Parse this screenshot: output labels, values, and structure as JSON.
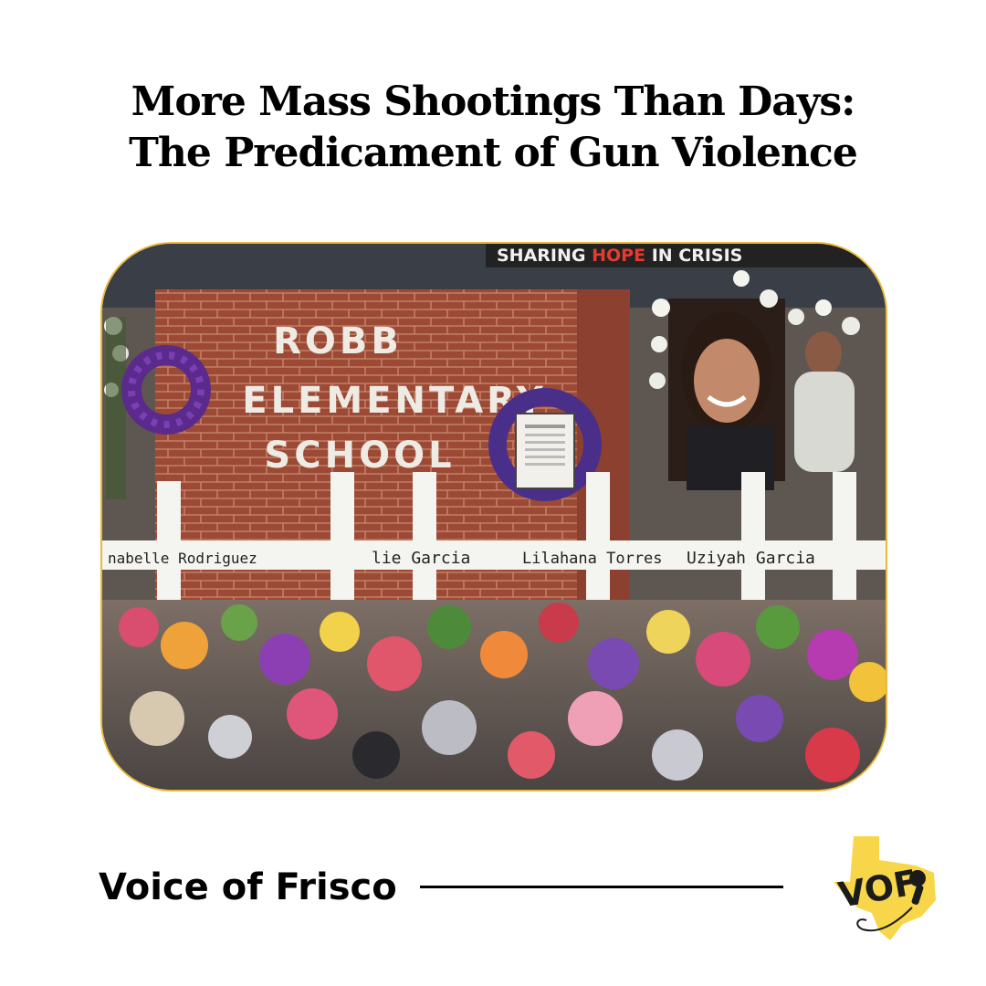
{
  "title": {
    "line1": "More Mass Shootings Than Days:",
    "line2": "The Predicament of Gun Violence"
  },
  "photo": {
    "sign": {
      "line1": "ROBB",
      "line2": "ELEMENTARY",
      "line3": "SCHOOL"
    },
    "banner": {
      "part1": "SHARING ",
      "part2": "HOPE",
      "part3": " IN CRISIS"
    },
    "crosses": [
      "nabelle Rodriguez",
      "lie Garcia",
      "Lilahana Torres",
      "Uziyah Garcia"
    ],
    "colors": {
      "frame": "#e8b93a",
      "brick": "#9c4a35",
      "banner_accent": "#e63b2e"
    }
  },
  "footer": {
    "brand": "Voice of Frisco"
  },
  "logo": {
    "text": "VOF",
    "icon": "texas-microphone-logo-icon",
    "colors": {
      "texas": "#f7d64a"
    }
  }
}
